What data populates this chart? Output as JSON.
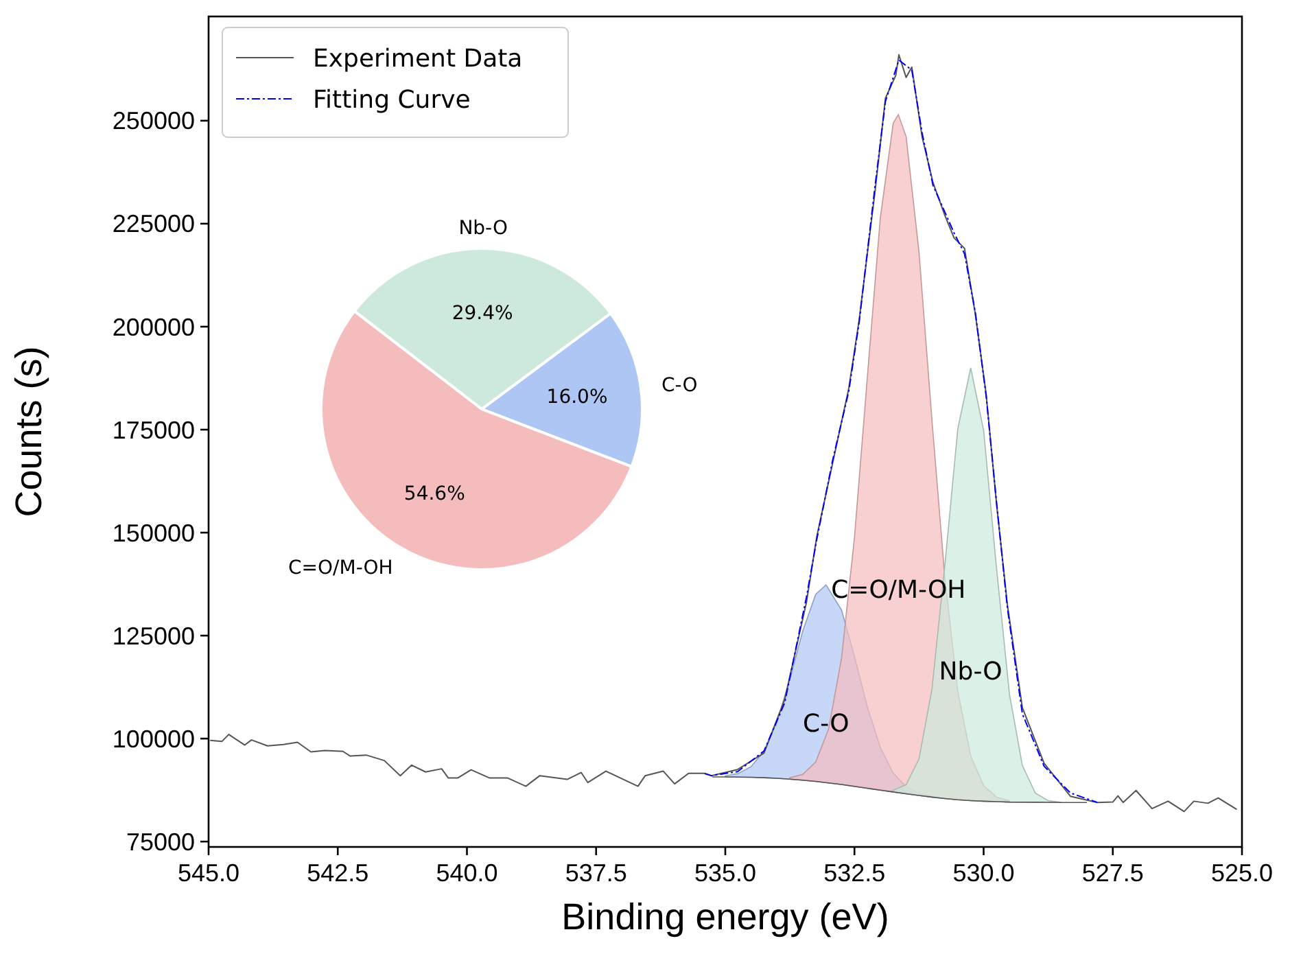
{
  "chart_data": [
    {
      "type": "line",
      "xlabel": "Binding energy (eV)",
      "ylabel": "Counts (s)",
      "xlim": [
        545,
        525
      ],
      "ylim": [
        73700,
        275300
      ],
      "xticks": [
        {
          "value": 545,
          "label": "545.0"
        },
        {
          "value": 542.5,
          "label": "542.5"
        },
        {
          "value": 540,
          "label": "540.0"
        },
        {
          "value": 537.5,
          "label": "537.5"
        },
        {
          "value": 535,
          "label": "535.0"
        },
        {
          "value": 532.5,
          "label": "532.5"
        },
        {
          "value": 530,
          "label": "530.0"
        },
        {
          "value": 527.5,
          "label": "527.5"
        },
        {
          "value": 525,
          "label": "525.0"
        }
      ],
      "yticks": [
        75000,
        100000,
        125000,
        150000,
        175000,
        200000,
        225000,
        250000
      ],
      "grid": false,
      "legend": "top left",
      "series": [
        {
          "type": "area",
          "name": "C-O",
          "color": "#aec6f4",
          "x": [
            535,
            534.75,
            534.5,
            534.25,
            534,
            533.75,
            533.5,
            533.25,
            533.05,
            532.75,
            532.5,
            532.25,
            532,
            531.75,
            531.5,
            531.25,
            531
          ],
          "values": [
            90950,
            91510,
            93200,
            96990,
            104050,
            114450,
            126130,
            135010,
            137320,
            131210,
            119940,
            107680,
            97880,
            91640,
            88310,
            86730,
            85940
          ]
        },
        {
          "type": "area",
          "name": "C=O/M-OH",
          "color": "#f5bcbd",
          "x": [
            533.75,
            533.5,
            533.25,
            533,
            532.75,
            532.5,
            532.25,
            532,
            531.75,
            531.65,
            531.5,
            531.25,
            531,
            530.75,
            530.5,
            530.25,
            530,
            529.75,
            529.5
          ],
          "values": [
            90510,
            91320,
            94310,
            102350,
            119530,
            148790,
            187780,
            226340,
            249380,
            251470,
            246130,
            218000,
            177330,
            138890,
            111420,
            95780,
            88550,
            85790,
            84880
          ]
        },
        {
          "type": "area",
          "name": "Nb-O",
          "color": "#cce9dc",
          "x": [
            531.75,
            531.5,
            531.25,
            531,
            530.75,
            530.5,
            530.25,
            530,
            529.75,
            529.5,
            529.25,
            529,
            528.75,
            528.5
          ],
          "values": [
            87455,
            88817,
            95100,
            112000,
            142110,
            175180,
            190000,
            174830,
            141360,
            110800,
            93480,
            86770,
            84935,
            84555
          ]
        },
        {
          "type": "line",
          "color": "#555555",
          "line_style": "solid",
          "x": [
            535.25,
            535,
            534.5,
            534.25,
            534,
            533.75,
            533.5,
            533.25,
            533,
            532.75,
            532.5,
            532.25,
            532,
            531.75,
            531.5,
            531.25,
            531,
            530.75,
            530.5,
            530.25,
            530,
            529.75,
            529.5,
            529,
            528.5,
            528
          ],
          "values": [
            90700,
            90700,
            90600,
            90500,
            90350,
            90150,
            89900,
            89600,
            89250,
            88850,
            88400,
            87950,
            87500,
            87050,
            86600,
            86200,
            85800,
            85450,
            85150,
            84950,
            84800,
            84700,
            84600,
            84550,
            84500,
            84500
          ]
        },
        {
          "type": "line",
          "name": "Experiment Data",
          "color": "#555555",
          "line_style": "solid",
          "x": [
            544.97,
            544.74,
            544.61,
            544.3,
            544.17,
            543.86,
            543.55,
            543.28,
            543.02,
            542.75,
            542.4,
            542.26,
            541.95,
            541.6,
            541.29,
            541.07,
            540.8,
            540.49,
            540.36,
            540.18,
            539.92,
            539.56,
            539.21,
            538.86,
            538.59,
            538.06,
            537.79,
            537.66,
            537.31,
            536.69,
            536.55,
            536.2,
            535.98,
            535.71,
            535.4,
            535.27,
            534.76,
            534.25,
            533.85,
            533.43,
            533.23,
            532.92,
            532.61,
            532.41,
            532.1,
            531.9,
            531.7,
            531.64,
            531.5,
            531.39,
            531.19,
            530.98,
            530.75,
            530.57,
            530.37,
            530.16,
            529.95,
            529.75,
            529.54,
            529.25,
            528.83,
            528.32,
            527.8,
            527.5,
            527.4,
            527.3,
            527.05,
            526.74,
            526.43,
            526.12,
            525.93,
            525.66,
            525.46,
            525.1
          ],
          "values": [
            99560,
            99330,
            101000,
            98430,
            99670,
            98230,
            98560,
            99100,
            96770,
            97100,
            96900,
            95770,
            96000,
            94670,
            91000,
            93560,
            91900,
            92670,
            90430,
            90430,
            92430,
            90430,
            90430,
            88430,
            91000,
            90100,
            91770,
            89330,
            92100,
            88430,
            91000,
            92100,
            89000,
            91560,
            91560,
            91000,
            92500,
            96500,
            109500,
            133000,
            149000,
            167000,
            185000,
            201500,
            233000,
            255500,
            261000,
            266000,
            260500,
            263000,
            246000,
            235000,
            227000,
            221500,
            219000,
            203000,
            183500,
            157000,
            132500,
            107500,
            94000,
            86000,
            84500,
            84600,
            86100,
            84500,
            87400,
            83000,
            84800,
            82300,
            84800,
            84300,
            85600,
            82800
          ]
        },
        {
          "type": "line",
          "name": "Fitting Curve",
          "color": "#0000ff",
          "line_style": "dashed",
          "x": [
            535.4,
            535.27,
            534.76,
            534.25,
            533.85,
            533.43,
            533.23,
            532.92,
            532.61,
            532.41,
            532.1,
            531.9,
            531.64,
            531.39,
            531.19,
            530.98,
            530.57,
            530.37,
            530.16,
            529.95,
            529.75,
            529.54,
            529.25,
            528.83,
            528.32,
            527.8
          ],
          "values": [
            91500,
            91000,
            92000,
            97000,
            108700,
            134300,
            148300,
            167700,
            184300,
            201000,
            234300,
            254700,
            264700,
            262300,
            247000,
            234300,
            222700,
            217700,
            203400,
            183000,
            157300,
            131700,
            106000,
            93300,
            86800,
            84500
          ]
        }
      ]
    },
    {
      "type": "pie",
      "categories": [
        "C-O",
        "Nb-O",
        "C=O/M-OH"
      ],
      "values": [
        16.0,
        29.4,
        54.6
      ],
      "colors": [
        "#aec6f4",
        "#cce9dc",
        "#f5bcbd"
      ],
      "value_labels": [
        "16.0%",
        "29.4%",
        "54.6%"
      ],
      "legend": false
    }
  ]
}
